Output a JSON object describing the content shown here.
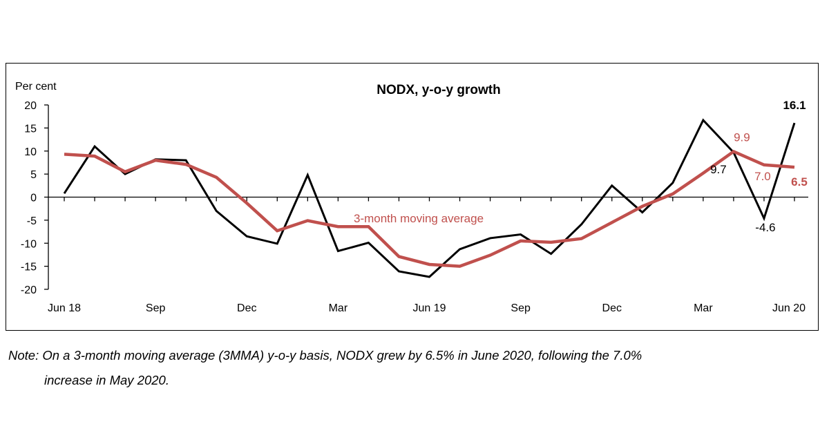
{
  "chart_data": {
    "type": "line",
    "title": "NODX, y-o-y growth",
    "ylabel": "Per cent",
    "xlabel": "",
    "ylim": [
      -20,
      20
    ],
    "yticks": [
      20,
      15,
      10,
      5,
      0,
      -5,
      -10,
      -15,
      -20
    ],
    "x": [
      "Jun 18",
      "Jul 18",
      "Aug 18",
      "Sep 18",
      "Oct 18",
      "Nov 18",
      "Dec 18",
      "Jan 19",
      "Feb 19",
      "Mar 19",
      "Apr 19",
      "May 19",
      "Jun 19",
      "Jul 19",
      "Aug 19",
      "Sep 19",
      "Oct 19",
      "Nov 19",
      "Dec 19",
      "Jan 20",
      "Feb 20",
      "Mar 20",
      "Apr 20",
      "May 20",
      "Jun 20"
    ],
    "tick_labels": [
      "Jun 18",
      "",
      "",
      "Sep",
      "",
      "",
      "Dec",
      "",
      "",
      "Mar",
      "",
      "",
      "Jun 19",
      "",
      "",
      "Sep",
      "",
      "",
      "Dec",
      "",
      "",
      "Mar",
      "",
      "",
      "Jun 20"
    ],
    "series": [
      {
        "values": [
          0.8,
          11.0,
          5.0,
          8.2,
          8.0,
          -3.0,
          -8.5,
          -10.1,
          4.8,
          -11.7,
          -9.9,
          -16.1,
          -17.3,
          -11.3,
          -8.9,
          -8.1,
          -12.3,
          -5.9,
          2.5,
          -3.3,
          3.1,
          16.7,
          9.7,
          -4.6,
          16.1
        ],
        "color": "#000000"
      },
      {
        "name": "3-month moving average",
        "values": [
          9.3,
          8.9,
          5.5,
          8.0,
          7.1,
          4.3,
          -1.3,
          -7.3,
          -5.1,
          -6.4,
          -6.4,
          -12.9,
          -14.6,
          -15.0,
          -12.6,
          -9.5,
          -9.8,
          -9.0,
          -5.5,
          -2.0,
          0.7,
          5.2,
          9.9,
          7.0,
          6.5
        ],
        "color": "#c0504d"
      }
    ],
    "annotations": [
      {
        "text": "16.1",
        "series": 0,
        "index": 24
      },
      {
        "text": "9.7",
        "series": 0,
        "index": 22
      },
      {
        "text": "-4.6",
        "series": 0,
        "index": 23
      },
      {
        "text": "9.9",
        "series": 1,
        "index": 22
      },
      {
        "text": "7.0",
        "series": 1,
        "index": 23
      },
      {
        "text": "6.5",
        "series": 1,
        "index": 24
      }
    ],
    "grid": false
  },
  "note": {
    "line1": "Note: On a 3-month moving average (3MMA) y-o-y basis, NODX grew by 6.5% in June 2020, following the 7.0%",
    "line2": "increase in May 2020."
  }
}
